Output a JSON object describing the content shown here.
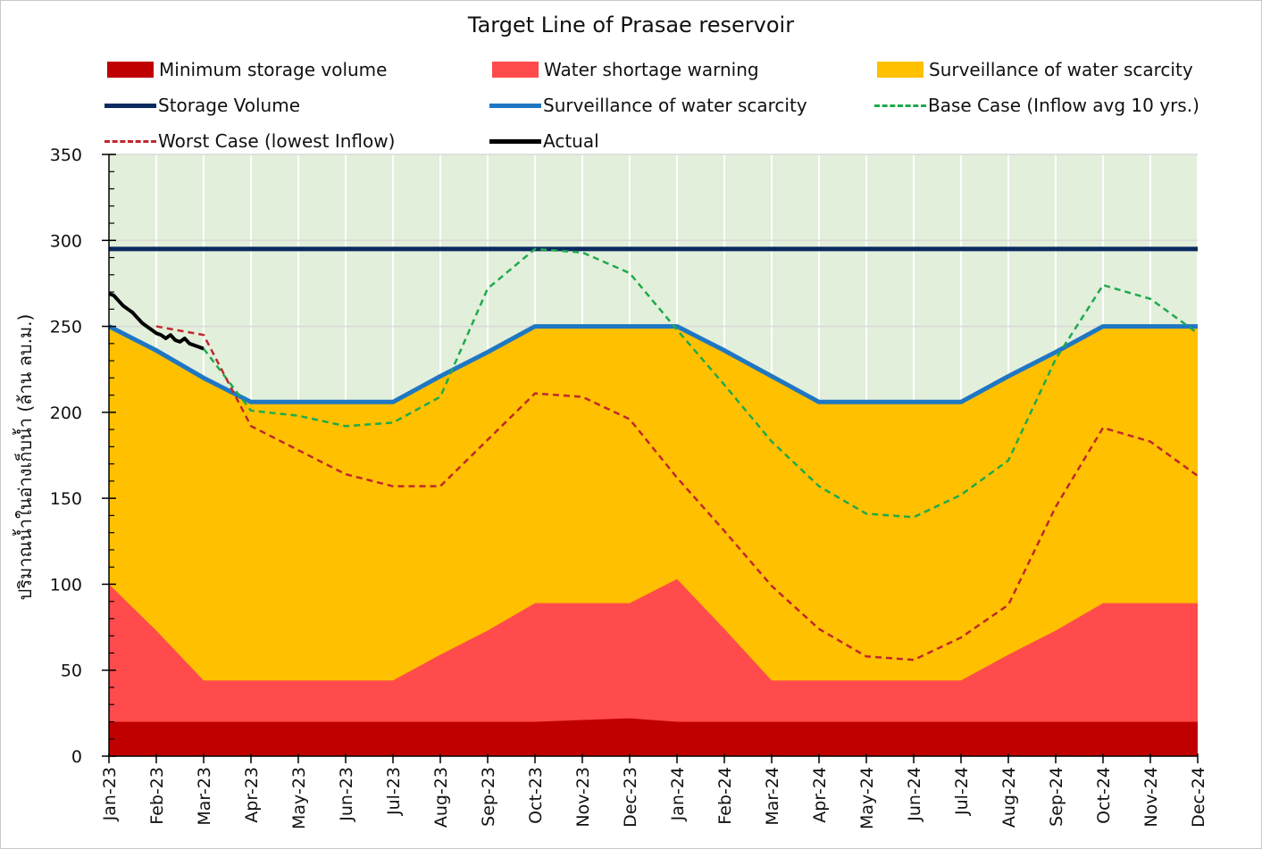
{
  "colors": {
    "plot_background": "#e2efda",
    "minimum_storage": "#c00000",
    "water_shortage": "#ff4b4b",
    "surveillance_area": "#ffc000",
    "storage_volume": "#0b2a5e",
    "surveillance_line": "#1f77c3",
    "base_case": "#1faa4e",
    "worst_case": "#c0282d",
    "actual": "#000000",
    "gridline": "#d9d9d9"
  },
  "chart_data": {
    "type": "area",
    "title": "Target Line of Prasae reservoir",
    "xlabel": "",
    "ylabel": "ปริมาณน้ำในอ่างเก็บน้ำ (ล้าน ลบ.ม.)",
    "ylim": [
      0,
      350
    ],
    "yticks": [
      0,
      50,
      100,
      150,
      200,
      250,
      300,
      350
    ],
    "grid": true,
    "legend_position": "top",
    "categories": [
      "Jan-23",
      "Feb-23",
      "Mar-23",
      "Apr-23",
      "May-23",
      "Jun-23",
      "Jul-23",
      "Aug-23",
      "Sep-23",
      "Oct-23",
      "Nov-23",
      "Dec-23",
      "Jan-24",
      "Feb-24",
      "Mar-24",
      "Apr-24",
      "May-24",
      "Jun-24",
      "Jul-24",
      "Aug-24",
      "Sep-24",
      "Oct-24",
      "Nov-24",
      "Dec-24"
    ],
    "series": [
      {
        "name": "Minimum storage volume",
        "kind": "area",
        "color_key": "minimum_storage",
        "values": [
          20,
          20,
          20,
          20,
          20,
          20,
          20,
          20,
          20,
          20,
          21,
          22,
          20,
          20,
          20,
          20,
          20,
          20,
          20,
          20,
          20,
          20,
          20,
          20
        ]
      },
      {
        "name": "Water shortage warning",
        "kind": "area",
        "color_key": "water_shortage",
        "values": [
          100,
          73,
          44,
          44,
          44,
          44,
          44,
          59,
          73,
          89,
          89,
          89,
          103,
          74,
          44,
          44,
          44,
          44,
          44,
          59,
          73,
          89,
          89,
          89
        ]
      },
      {
        "name": "Surveillance of water scarcity",
        "kind": "area",
        "color_key": "surveillance_area",
        "values": [
          250,
          236,
          220,
          206,
          206,
          206,
          206,
          221,
          235,
          250,
          250,
          250,
          250,
          236,
          221,
          206,
          206,
          206,
          206,
          221,
          235,
          250,
          250,
          250
        ]
      },
      {
        "name": "Storage Volume",
        "kind": "line",
        "color_key": "storage_volume",
        "values": [
          295,
          295,
          295,
          295,
          295,
          295,
          295,
          295,
          295,
          295,
          295,
          295,
          295,
          295,
          295,
          295,
          295,
          295,
          295,
          295,
          295,
          295,
          295,
          295
        ]
      },
      {
        "name": "Surveillance of water scarcity",
        "kind": "line",
        "color_key": "surveillance_line",
        "values": [
          250,
          236,
          220,
          206,
          206,
          206,
          206,
          221,
          235,
          250,
          250,
          250,
          250,
          236,
          221,
          206,
          206,
          206,
          206,
          221,
          235,
          250,
          250,
          250
        ]
      },
      {
        "name": "Base Case (Inflow avg 10 yrs.)",
        "kind": "dashed",
        "color_key": "base_case",
        "values": [
          null,
          null,
          237,
          201,
          198,
          192,
          194,
          209,
          272,
          295,
          293,
          281,
          248,
          216,
          183,
          157,
          141,
          139,
          152,
          172,
          231,
          274,
          266,
          246
        ]
      },
      {
        "name": "Worst Case (lowest Inflow)",
        "kind": "dashed",
        "color_key": "worst_case",
        "values": [
          null,
          250,
          245,
          192,
          178,
          164,
          157,
          157,
          184,
          211,
          209,
          196,
          162,
          131,
          99,
          74,
          58,
          56,
          69,
          88,
          145,
          191,
          183,
          163
        ]
      },
      {
        "name": "Actual",
        "kind": "line",
        "color_key": "actual",
        "x": [
          0,
          0.1,
          0.2,
          0.3,
          0.4,
          0.5,
          0.6,
          0.7,
          0.8,
          0.9,
          1.0,
          1.1,
          1.2,
          1.3,
          1.4,
          1.5,
          1.6,
          1.7,
          1.8,
          1.9,
          2.0
        ],
        "values": [
          269,
          268,
          265,
          262,
          260,
          258,
          255,
          252,
          250,
          248,
          246,
          245,
          243,
          245,
          242,
          241,
          243,
          240,
          239,
          238,
          237
        ]
      }
    ]
  },
  "legend": [
    {
      "label": "Minimum storage volume",
      "style": "box",
      "color_key": "minimum_storage"
    },
    {
      "label": "Water shortage warning",
      "style": "box",
      "color_key": "water_shortage"
    },
    {
      "label": "Surveillance of water scarcity",
      "style": "box",
      "color_key": "surveillance_area"
    },
    {
      "label": "Storage Volume",
      "style": "line",
      "color_key": "storage_volume"
    },
    {
      "label": "Surveillance of water scarcity",
      "style": "line",
      "color_key": "surveillance_line"
    },
    {
      "label": "Base Case (Inflow avg 10 yrs.)",
      "style": "dashed",
      "color_key": "base_case"
    },
    {
      "label": "Worst Case (lowest Inflow)",
      "style": "dashed",
      "color_key": "worst_case"
    },
    {
      "label": "Actual",
      "style": "line",
      "color_key": "actual"
    }
  ]
}
